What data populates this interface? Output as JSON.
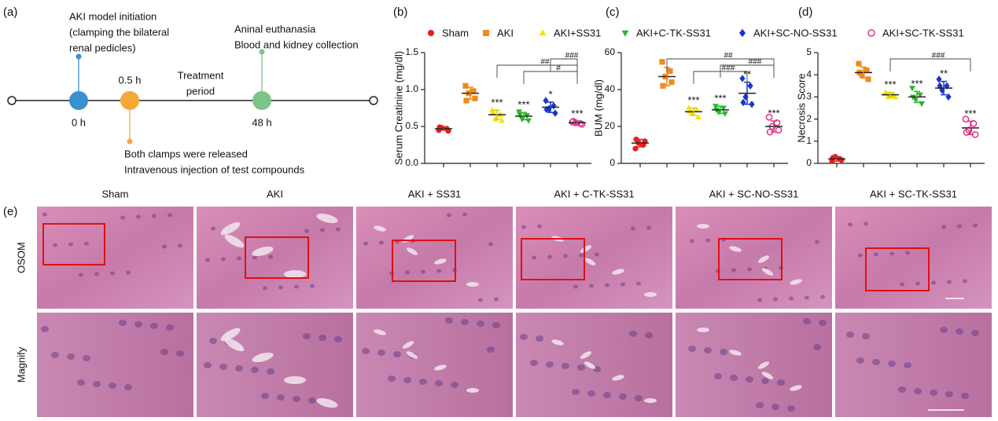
{
  "panel_labels": [
    "(a)",
    "(b)",
    "(c)",
    "(d)",
    "(e)"
  ],
  "timeline": {
    "events": [
      {
        "label": "0 h",
        "color": "#3a8fd0",
        "lines": [
          "AKI model initiation",
          "(clamping the bilateral",
          "renal pedicles)"
        ]
      },
      {
        "label": "0.5 h",
        "color": "#f3a83a",
        "lines": [
          "Both clamps were released",
          "Intravenous injection of test compounds"
        ]
      },
      {
        "label": "48 h",
        "color": "#7cc48a",
        "lines": [
          "Aninal euthanasia",
          "Blood and kidney collection"
        ]
      }
    ],
    "treatment": [
      "Treatment",
      "period"
    ]
  },
  "legend": [
    {
      "name": "Sham",
      "color": "#e02020",
      "marker": "circle"
    },
    {
      "name": "AKI",
      "color": "#f28a1e",
      "marker": "square"
    },
    {
      "name": "AKI+SS31",
      "color": "#f2e300",
      "marker": "triangle"
    },
    {
      "name": "AKI+C-TK-SS31",
      "color": "#2cb52c",
      "marker": "triangle-down"
    },
    {
      "name": "AKI+SC-NO-SS31",
      "color": "#1a35c8",
      "marker": "diamond"
    },
    {
      "name": "AKI+SC-TK-SS31",
      "color": "#e0308a",
      "marker": "open-circle"
    }
  ],
  "chart_data": [
    {
      "type": "scatter",
      "ylabel": "Serum Creatinine (mg/dl)",
      "ylim": [
        0,
        1.5
      ],
      "yticks": [
        {
          "value": 0,
          "label": "0.0"
        },
        {
          "value": 0.5,
          "label": "0.5"
        },
        {
          "value": 1,
          "label": "1.0"
        },
        {
          "value": 1.5,
          "label": "1.5"
        }
      ],
      "series": [
        {
          "values": [
            0.45,
            0.47,
            0.48,
            0.44,
            0.49
          ],
          "mean": 0.47,
          "sd": 0.02,
          "sig": null
        },
        {
          "values": [
            1.05,
            0.98,
            0.95,
            0.88,
            0.85
          ],
          "mean": 0.95,
          "sd": 0.08,
          "sig": null
        },
        {
          "values": [
            0.72,
            0.66,
            0.6,
            0.58,
            0.68
          ],
          "mean": 0.66,
          "sd": 0.06,
          "sig": "***"
        },
        {
          "values": [
            0.7,
            0.65,
            0.6,
            0.58,
            0.66
          ],
          "mean": 0.64,
          "sd": 0.05,
          "sig": "***"
        },
        {
          "values": [
            0.85,
            0.78,
            0.74,
            0.68,
            0.73
          ],
          "mean": 0.76,
          "sd": 0.07,
          "sig": "*"
        },
        {
          "values": [
            0.56,
            0.54,
            0.55,
            0.53,
            0.57
          ],
          "mean": 0.55,
          "sd": 0.02,
          "sig": "***"
        }
      ],
      "comparisons": [
        {
          "label": "###",
          "from": "AKI+SC-NO-SS31",
          "to": "AKI+SC-TK-SS31"
        },
        {
          "label": "##",
          "from": "AKI+SS31",
          "to": "AKI+SC-TK-SS31"
        },
        {
          "label": "#",
          "from": "AKI+C-TK-SS31",
          "to": "AKI+SC-TK-SS31"
        }
      ]
    },
    {
      "type": "scatter",
      "ylabel": "BUM (mg/dl)",
      "ylim": [
        0,
        60
      ],
      "yticks": [
        0,
        20,
        40,
        60
      ],
      "series": [
        {
          "values": [
            8,
            10,
            11,
            12,
            13
          ],
          "mean": 11,
          "sd": 2,
          "sig": null
        },
        {
          "values": [
            55,
            50,
            47,
            44,
            42
          ],
          "mean": 47,
          "sd": 5,
          "sig": null
        },
        {
          "values": [
            30,
            29,
            27,
            25,
            28
          ],
          "mean": 28,
          "sd": 2,
          "sig": "***"
        },
        {
          "values": [
            31,
            30,
            28,
            27,
            29
          ],
          "mean": 29,
          "sd": 2,
          "sig": "***"
        },
        {
          "values": [
            46,
            42,
            36,
            32,
            33
          ],
          "mean": 38,
          "sd": 6,
          "sig": "**"
        },
        {
          "values": [
            25,
            22,
            20,
            18,
            17
          ],
          "mean": 20,
          "sd": 3,
          "sig": "***"
        }
      ],
      "comparisons": [
        {
          "label": "##",
          "from": "AKI",
          "to": "AKI+SC-TK-SS31"
        },
        {
          "label": "###",
          "from": "AKI+C-TK-SS31",
          "to": "AKI+SC-TK-SS31"
        },
        {
          "label": "###",
          "from": "AKI+SS31",
          "to": "AKI+SC-NO-SS31"
        }
      ]
    },
    {
      "type": "scatter",
      "ylabel": "Necrosis Score",
      "ylim": [
        0,
        5
      ],
      "yticks": [
        0,
        1,
        2,
        3,
        4,
        5
      ],
      "series": [
        {
          "values": [
            0.1,
            0.2,
            0.3,
            0.15,
            0.25
          ],
          "mean": 0.2,
          "sd": 0.1,
          "sig": null
        },
        {
          "values": [
            4.5,
            4.2,
            4.0,
            3.8,
            4.1
          ],
          "mean": 4.1,
          "sd": 0.25,
          "sig": null
        },
        {
          "values": [
            3.2,
            3.1,
            3.0,
            3.0,
            3.15
          ],
          "mean": 3.1,
          "sd": 0.1,
          "sig": "***"
        },
        {
          "values": [
            3.4,
            3.1,
            2.9,
            2.7,
            3.0
          ],
          "mean": 3.0,
          "sd": 0.25,
          "sig": "***"
        },
        {
          "values": [
            3.8,
            3.5,
            3.3,
            3.0,
            3.5
          ],
          "mean": 3.4,
          "sd": 0.3,
          "sig": "**"
        },
        {
          "values": [
            2.0,
            1.8,
            1.5,
            1.3,
            1.4
          ],
          "mean": 1.6,
          "sd": 0.3,
          "sig": "***"
        }
      ],
      "comparisons": [
        {
          "label": "###",
          "from": "AKI+SS31",
          "to": "AKI+SC-TK-SS31"
        }
      ]
    }
  ],
  "histology": {
    "columns": [
      "Sham",
      "AKI",
      "AKI + SS31",
      "AKI + C-TK-SS31",
      "AKI + SC-NO-SS31",
      "AKI + SC-TK-SS31"
    ],
    "rows": [
      "OSOM",
      "Magnify"
    ]
  }
}
